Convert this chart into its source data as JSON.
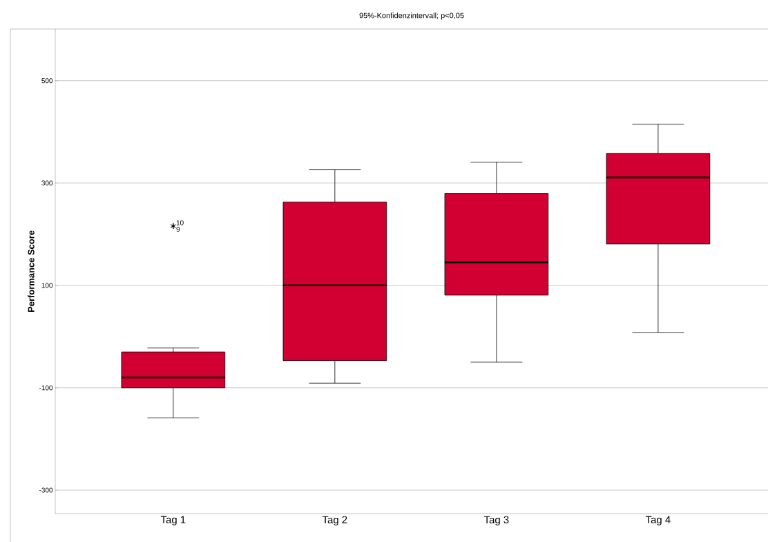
{
  "chart_data": {
    "type": "box",
    "title": "95%-Konfidenzintervall; p<0,05",
    "ylabel": "Performance Score",
    "categories": [
      "Tag 1",
      "Tag 2",
      "Tag 3",
      "Tag 4"
    ],
    "color": "#d20032",
    "boxes": [
      {
        "low": -159,
        "q1": -100,
        "median": -80,
        "q3": -30,
        "high": -22,
        "outliers": [
          216,
          216
        ]
      },
      {
        "low": -91,
        "q1": -47,
        "median": 100,
        "q3": 263,
        "high": 326
      },
      {
        "low": -50,
        "q1": 81,
        "median": 145,
        "q3": 280,
        "high": 341
      },
      {
        "low": 8,
        "q1": 181,
        "median": 311,
        "q3": 358,
        "high": 415
      }
    ],
    "ylim": [
      -346,
      601
    ],
    "yticks": [
      -300,
      -100,
      100,
      300,
      500
    ],
    "grid": "y",
    "marker": "star",
    "annotations": [
      "10",
      "9"
    ]
  }
}
